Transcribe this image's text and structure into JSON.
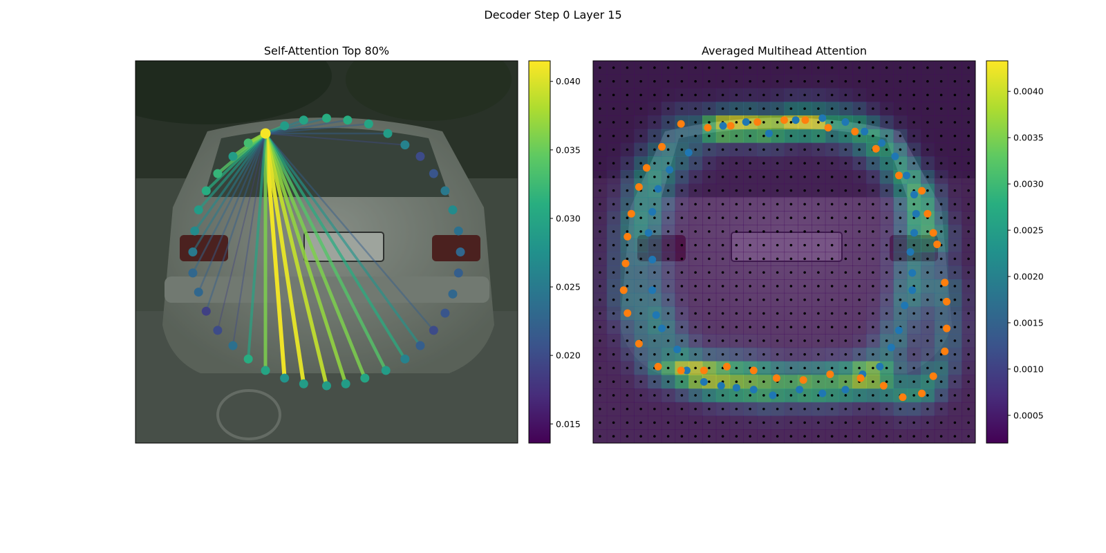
{
  "figure": {
    "suptitle": "Decoder Step 0 Layer 15"
  },
  "chart_data": [
    {
      "type": "scatter",
      "panel": "left",
      "title": "Self-Attention Top 80%",
      "background": "car photo (rear view, grey hatchback)",
      "colormap": "viridis",
      "colorbar": {
        "range": [
          0.0136,
          0.0415
        ],
        "ticks": [
          "0.015",
          "0.020",
          "0.025",
          "0.030",
          "0.035",
          "0.040"
        ],
        "tick_values": [
          0.015,
          0.02,
          0.025,
          0.03,
          0.035,
          0.04
        ]
      },
      "query_point": {
        "x": 0.34,
        "y": 0.19,
        "value": 0.0412
      },
      "points": [
        {
          "x": 0.34,
          "y": 0.19,
          "v": 0.0412
        },
        {
          "x": 0.39,
          "y": 0.17,
          "v": 0.029
        },
        {
          "x": 0.44,
          "y": 0.155,
          "v": 0.03
        },
        {
          "x": 0.5,
          "y": 0.15,
          "v": 0.031
        },
        {
          "x": 0.555,
          "y": 0.155,
          "v": 0.031
        },
        {
          "x": 0.61,
          "y": 0.165,
          "v": 0.03
        },
        {
          "x": 0.66,
          "y": 0.19,
          "v": 0.029
        },
        {
          "x": 0.705,
          "y": 0.22,
          "v": 0.026
        },
        {
          "x": 0.745,
          "y": 0.25,
          "v": 0.02
        },
        {
          "x": 0.78,
          "y": 0.295,
          "v": 0.021
        },
        {
          "x": 0.81,
          "y": 0.34,
          "v": 0.025
        },
        {
          "x": 0.83,
          "y": 0.39,
          "v": 0.027
        },
        {
          "x": 0.845,
          "y": 0.445,
          "v": 0.024
        },
        {
          "x": 0.85,
          "y": 0.5,
          "v": 0.023
        },
        {
          "x": 0.845,
          "y": 0.555,
          "v": 0.022
        },
        {
          "x": 0.83,
          "y": 0.61,
          "v": 0.023
        },
        {
          "x": 0.81,
          "y": 0.66,
          "v": 0.021
        },
        {
          "x": 0.78,
          "y": 0.705,
          "v": 0.02
        },
        {
          "x": 0.745,
          "y": 0.745,
          "v": 0.022
        },
        {
          "x": 0.705,
          "y": 0.78,
          "v": 0.026
        },
        {
          "x": 0.655,
          "y": 0.81,
          "v": 0.029
        },
        {
          "x": 0.6,
          "y": 0.83,
          "v": 0.03
        },
        {
          "x": 0.55,
          "y": 0.845,
          "v": 0.029
        },
        {
          "x": 0.5,
          "y": 0.85,
          "v": 0.029
        },
        {
          "x": 0.44,
          "y": 0.845,
          "v": 0.029
        },
        {
          "x": 0.39,
          "y": 0.83,
          "v": 0.028
        },
        {
          "x": 0.34,
          "y": 0.81,
          "v": 0.03
        },
        {
          "x": 0.295,
          "y": 0.78,
          "v": 0.031
        },
        {
          "x": 0.255,
          "y": 0.745,
          "v": 0.024
        },
        {
          "x": 0.215,
          "y": 0.705,
          "v": 0.02
        },
        {
          "x": 0.185,
          "y": 0.655,
          "v": 0.019
        },
        {
          "x": 0.165,
          "y": 0.605,
          "v": 0.023
        },
        {
          "x": 0.15,
          "y": 0.555,
          "v": 0.023
        },
        {
          "x": 0.15,
          "y": 0.5,
          "v": 0.025
        },
        {
          "x": 0.155,
          "y": 0.445,
          "v": 0.027
        },
        {
          "x": 0.165,
          "y": 0.39,
          "v": 0.029
        },
        {
          "x": 0.185,
          "y": 0.34,
          "v": 0.031
        },
        {
          "x": 0.215,
          "y": 0.295,
          "v": 0.032
        },
        {
          "x": 0.255,
          "y": 0.25,
          "v": 0.029
        },
        {
          "x": 0.295,
          "y": 0.215,
          "v": 0.033
        }
      ],
      "edges_from_query": [
        {
          "to": 1,
          "w": 0.032
        },
        {
          "to": 2,
          "w": 0.026
        },
        {
          "to": 3,
          "w": 0.025
        },
        {
          "to": 4,
          "w": 0.022
        },
        {
          "to": 5,
          "w": 0.022
        },
        {
          "to": 6,
          "w": 0.022
        },
        {
          "to": 7,
          "w": 0.02
        },
        {
          "to": 17,
          "w": 0.022
        },
        {
          "to": 18,
          "w": 0.028
        },
        {
          "to": 19,
          "w": 0.031
        },
        {
          "to": 20,
          "w": 0.034
        },
        {
          "to": 21,
          "w": 0.036
        },
        {
          "to": 22,
          "w": 0.037
        },
        {
          "to": 23,
          "w": 0.039
        },
        {
          "to": 24,
          "w": 0.0405
        },
        {
          "to": 25,
          "w": 0.041
        },
        {
          "to": 26,
          "w": 0.036
        },
        {
          "to": 27,
          "w": 0.03
        },
        {
          "to": 28,
          "w": 0.02
        },
        {
          "to": 29,
          "w": 0.019
        },
        {
          "to": 30,
          "w": 0.022
        },
        {
          "to": 31,
          "w": 0.022
        },
        {
          "to": 32,
          "w": 0.023
        },
        {
          "to": 33,
          "w": 0.025
        },
        {
          "to": 34,
          "w": 0.027
        },
        {
          "to": 35,
          "w": 0.029
        },
        {
          "to": 36,
          "w": 0.031
        },
        {
          "to": 37,
          "w": 0.034
        },
        {
          "to": 38,
          "w": 0.035
        },
        {
          "to": 39,
          "w": 0.037
        }
      ]
    },
    {
      "type": "heatmap",
      "panel": "right",
      "title": "Averaged Multihead Attention",
      "background": "car photo (rear view) overlaid with attention heatmap",
      "colormap": "viridis",
      "colorbar": {
        "range": [
          0.0002,
          0.00433
        ],
        "ticks": [
          "0.0005",
          "0.0010",
          "0.0015",
          "0.0020",
          "0.0025",
          "0.0030",
          "0.0035",
          "0.0040"
        ],
        "tick_values": [
          0.0005,
          0.001,
          0.0015,
          0.002,
          0.0025,
          0.003,
          0.0035,
          0.004
        ]
      },
      "grid": {
        "rows": 28,
        "cols": 28
      },
      "series": [
        {
          "color": "#1f77b4",
          "points": [
            [
              0.46,
              0.19
            ],
            [
              0.53,
              0.155
            ],
            [
              0.6,
              0.15
            ],
            [
              0.66,
              0.16
            ],
            [
              0.71,
              0.185
            ],
            [
              0.755,
              0.215
            ],
            [
              0.79,
              0.25
            ],
            [
              0.82,
              0.3
            ],
            [
              0.84,
              0.35
            ],
            [
              0.845,
              0.4
            ],
            [
              0.84,
              0.45
            ],
            [
              0.83,
              0.5
            ],
            [
              0.835,
              0.555
            ],
            [
              0.835,
              0.6
            ],
            [
              0.815,
              0.64
            ],
            [
              0.8,
              0.705
            ],
            [
              0.78,
              0.75
            ],
            [
              0.75,
              0.8
            ],
            [
              0.705,
              0.82
            ],
            [
              0.66,
              0.86
            ],
            [
              0.6,
              0.87
            ],
            [
              0.54,
              0.86
            ],
            [
              0.47,
              0.875
            ],
            [
              0.42,
              0.86
            ],
            [
              0.375,
              0.855
            ],
            [
              0.335,
              0.85
            ],
            [
              0.29,
              0.84
            ],
            [
              0.245,
              0.81
            ],
            [
              0.22,
              0.755
            ],
            [
              0.18,
              0.7
            ],
            [
              0.165,
              0.665
            ],
            [
              0.155,
              0.6
            ],
            [
              0.155,
              0.52
            ],
            [
              0.145,
              0.45
            ],
            [
              0.155,
              0.395
            ],
            [
              0.17,
              0.335
            ],
            [
              0.2,
              0.285
            ],
            [
              0.25,
              0.24
            ],
            [
              0.34,
              0.17
            ],
            [
              0.4,
              0.16
            ]
          ]
        },
        {
          "color": "#ff7f0e",
          "points": [
            [
              0.3,
              0.175
            ],
            [
              0.36,
              0.17
            ],
            [
              0.43,
              0.16
            ],
            [
              0.5,
              0.155
            ],
            [
              0.555,
              0.155
            ],
            [
              0.615,
              0.175
            ],
            [
              0.685,
              0.185
            ],
            [
              0.74,
              0.23
            ],
            [
              0.8,
              0.3
            ],
            [
              0.86,
              0.34
            ],
            [
              0.875,
              0.4
            ],
            [
              0.89,
              0.45
            ],
            [
              0.9,
              0.48
            ],
            [
              0.92,
              0.58
            ],
            [
              0.925,
              0.63
            ],
            [
              0.925,
              0.7
            ],
            [
              0.92,
              0.76
            ],
            [
              0.89,
              0.825
            ],
            [
              0.86,
              0.87
            ],
            [
              0.81,
              0.88
            ],
            [
              0.76,
              0.85
            ],
            [
              0.7,
              0.83
            ],
            [
              0.62,
              0.82
            ],
            [
              0.55,
              0.835
            ],
            [
              0.48,
              0.83
            ],
            [
              0.42,
              0.81
            ],
            [
              0.35,
              0.8
            ],
            [
              0.29,
              0.81
            ],
            [
              0.23,
              0.81
            ],
            [
              0.17,
              0.8
            ],
            [
              0.12,
              0.74
            ],
            [
              0.09,
              0.66
            ],
            [
              0.08,
              0.6
            ],
            [
              0.085,
              0.53
            ],
            [
              0.09,
              0.46
            ],
            [
              0.1,
              0.4
            ],
            [
              0.12,
              0.33
            ],
            [
              0.14,
              0.28
            ],
            [
              0.18,
              0.225
            ],
            [
              0.23,
              0.165
            ]
          ]
        }
      ]
    }
  ]
}
